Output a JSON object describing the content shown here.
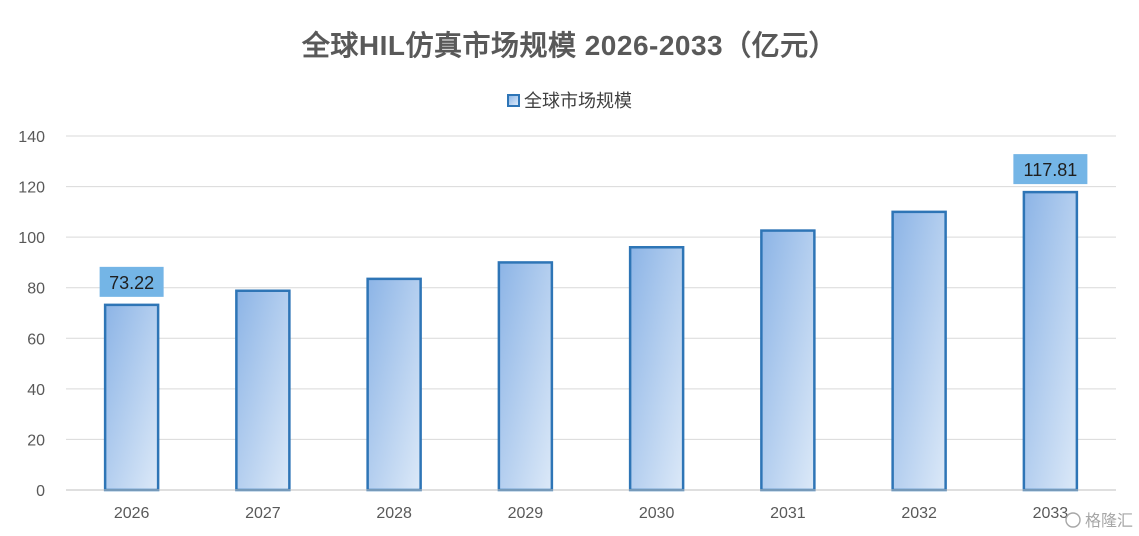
{
  "title": "全球HIL仿真市场规模 2026-2033（亿元）",
  "colors": {
    "bar_stroke": "#2e75b6",
    "bar_fill_start": "#8cb4e6",
    "bar_fill_end": "#dce9f8",
    "label_bg": "#74b5e6",
    "grid": "#d9d9d9",
    "text": "#595959"
  },
  "chart_data": {
    "type": "bar",
    "title": "全球HIL仿真市场规模 2026-2033（亿元）",
    "categories": [
      "2026",
      "2027",
      "2028",
      "2029",
      "2030",
      "2031",
      "2032",
      "2033"
    ],
    "series": [
      {
        "name": "全球市场规模",
        "values": [
          73.22,
          78.8,
          83.5,
          90.0,
          96.0,
          102.6,
          110.0,
          117.81
        ]
      }
    ],
    "data_labels": {
      "2026": "73.22",
      "2033": "117.81"
    },
    "yticks": [
      "0",
      "20",
      "40",
      "60",
      "80",
      "100",
      "120",
      "140"
    ],
    "ylim": [
      0,
      140
    ],
    "grid": true,
    "legend": "top-center",
    "xlabel": "",
    "ylabel": ""
  },
  "watermark": "格隆汇"
}
